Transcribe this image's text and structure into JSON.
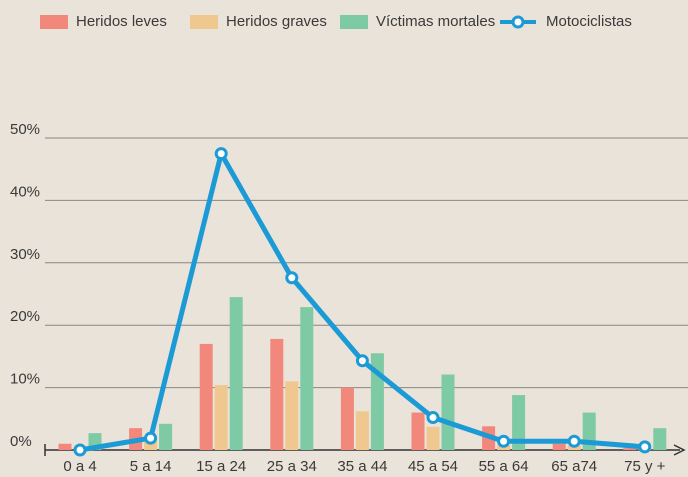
{
  "chart_data": {
    "type": "bar_line",
    "categories": [
      "0 a 4",
      "5 a 14",
      "15 a 24",
      "25 a 34",
      "35 a 44",
      "45 a 54",
      "55 a 64",
      "65 a74",
      "75 y +"
    ],
    "series": [
      {
        "name": "Heridos leves",
        "color": "#f2887c",
        "values": [
          1,
          3.5,
          17,
          17.8,
          10,
          6,
          3.8,
          1,
          0.3
        ]
      },
      {
        "name": "Heridos graves",
        "color": "#efc890",
        "values": [
          0.3,
          1.5,
          10.4,
          11,
          6.2,
          3.7,
          0.8,
          0.8,
          0.3
        ]
      },
      {
        "name": "Víctimas mortales",
        "color": "#7ecaa5",
        "values": [
          2.7,
          4.2,
          24.5,
          22.9,
          15.5,
          12.1,
          8.8,
          6,
          3.5
        ]
      },
      {
        "name": "Motociclistas",
        "type": "line",
        "color": "#1b9ad6",
        "values": [
          0,
          1.9,
          47.5,
          27.6,
          14.3,
          5.2,
          1.4,
          1.4,
          0.5
        ]
      }
    ],
    "ylim": [
      0,
      50
    ],
    "yticks": [
      {
        "value": 0,
        "label": "0%"
      },
      {
        "value": 10,
        "label": "10%"
      },
      {
        "value": 20,
        "label": "20%"
      },
      {
        "value": 30,
        "label": "30%"
      },
      {
        "value": 40,
        "label": "40%"
      },
      {
        "value": 50,
        "label": "50%"
      }
    ],
    "grid": true,
    "legend": "top"
  }
}
